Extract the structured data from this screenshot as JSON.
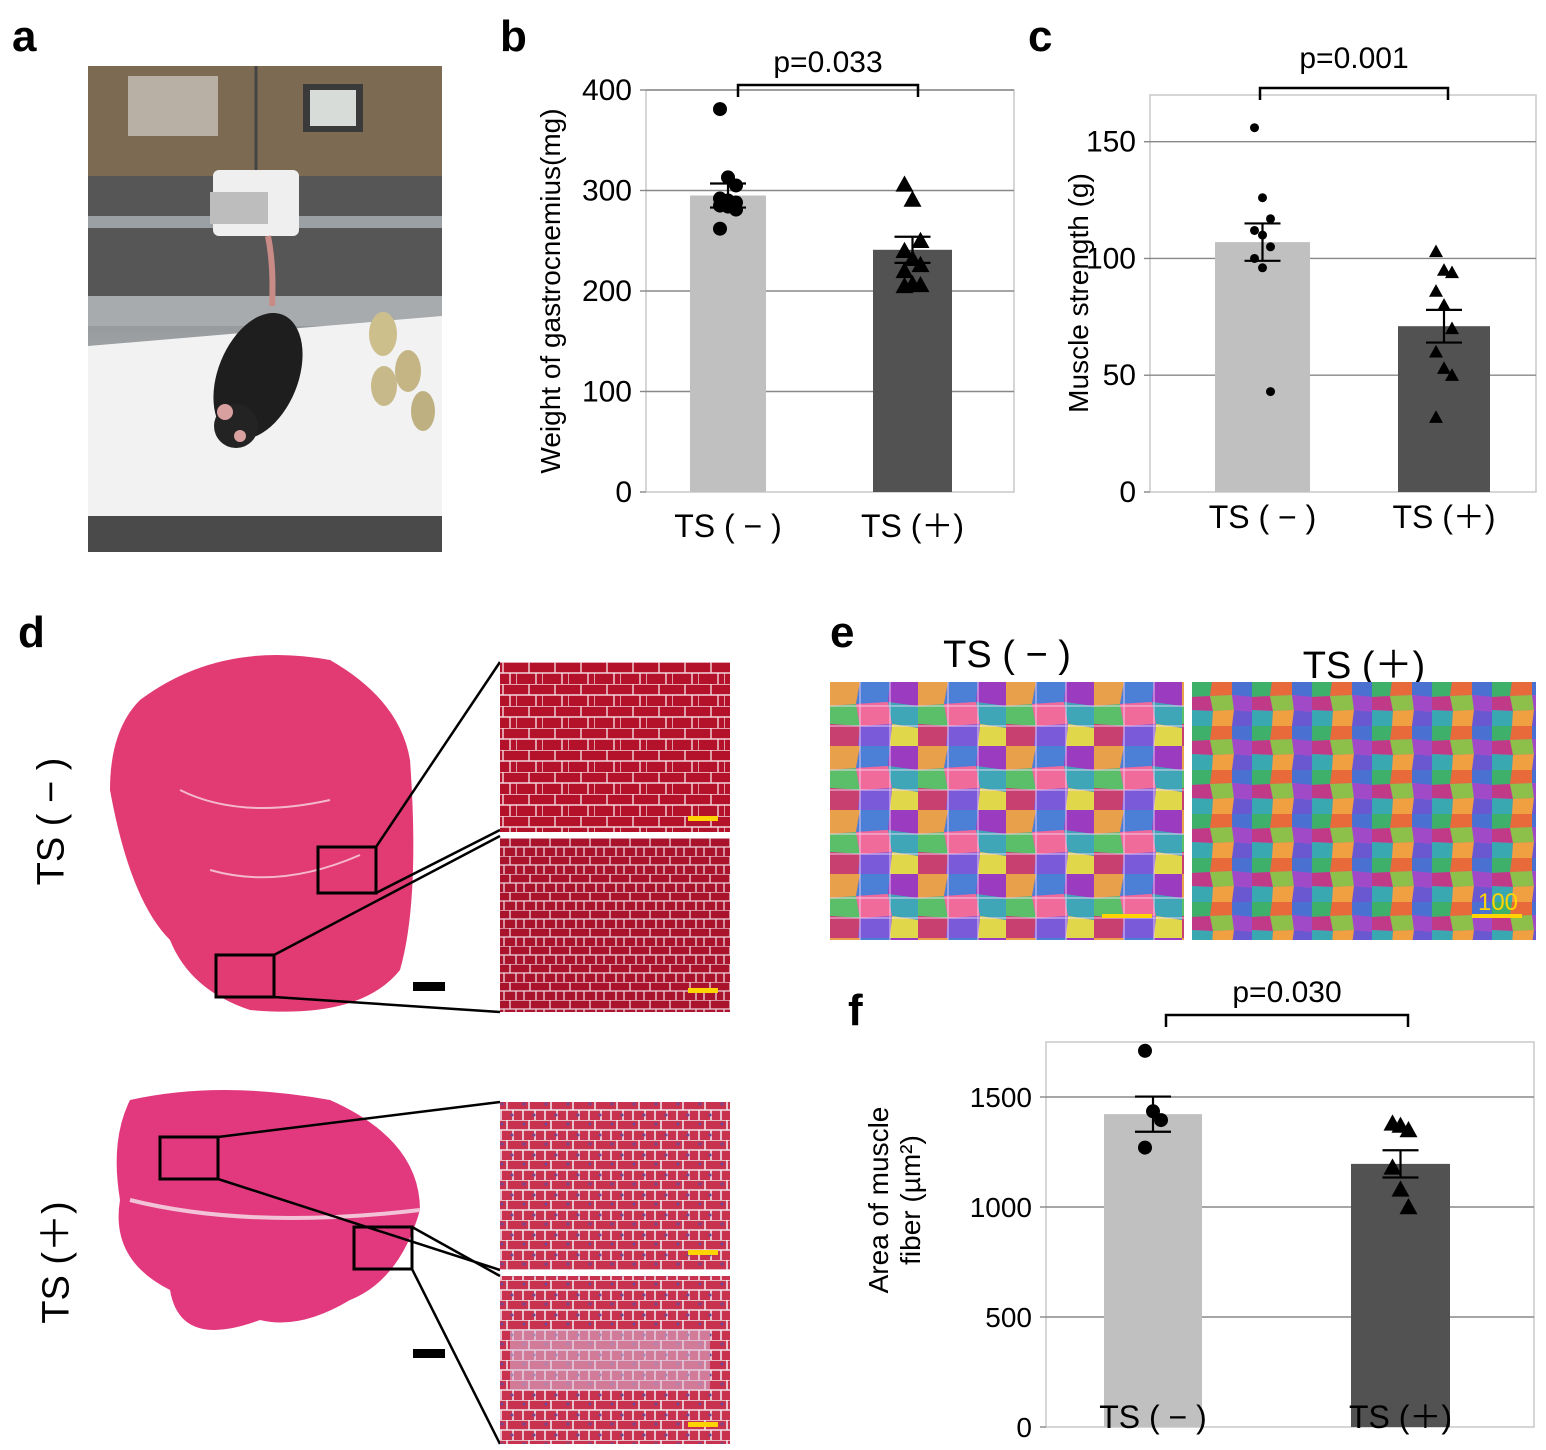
{
  "panels": {
    "a": "a",
    "b": "b",
    "c": "c",
    "d": "d",
    "e": "e",
    "f": "f"
  },
  "panel_d": {
    "row_labels": [
      "TS ( − )",
      "TS (＋)"
    ]
  },
  "panel_e": {
    "headers": [
      "TS ( − )",
      "TS (＋)"
    ],
    "scale_label": "100"
  },
  "colors": {
    "bar_control": "#c0c0c0",
    "bar_ts": "#525252",
    "grid": "#888888",
    "axis_frame": "#c8c8c8",
    "scale_yellow": "#ffd400"
  },
  "chart_data": [
    {
      "id": "b",
      "type": "bar",
      "categories": [
        "TS ( − )",
        "TS (＋)"
      ],
      "values": [
        295,
        241
      ],
      "errors": [
        12,
        13
      ],
      "ylabel": "Weight of gastrocnemius(mg)",
      "xlabel": "",
      "ylim": [
        0,
        400
      ],
      "yticks": [
        0,
        100,
        200,
        300,
        400
      ],
      "grid": true,
      "pvalue": "p=0.033",
      "points": [
        [
          381,
          313,
          305,
          292,
          290,
          288,
          285,
          284,
          281,
          262
        ],
        [
          306,
          291,
          250,
          240,
          232,
          226,
          220,
          207,
          206,
          205
        ]
      ],
      "markers": [
        "circle",
        "triangle"
      ]
    },
    {
      "id": "c",
      "type": "bar",
      "categories": [
        "TS ( − )",
        "TS (＋)"
      ],
      "values": [
        107,
        71
      ],
      "errors": [
        8,
        7
      ],
      "ylabel": "Muscle strength (g)",
      "xlabel": "",
      "ylim": [
        0,
        170
      ],
      "yticks": [
        0,
        50,
        100,
        150
      ],
      "grid": true,
      "pvalue": "p=0.001",
      "points": [
        [
          156,
          126,
          117,
          112,
          110,
          105,
          100,
          96,
          43
        ],
        [
          103,
          95,
          94,
          86,
          80,
          70,
          60,
          53,
          50,
          32
        ]
      ],
      "markers": [
        "circle",
        "triangle"
      ]
    },
    {
      "id": "f",
      "type": "bar",
      "categories": [
        "TS ( − )",
        "TS (＋)"
      ],
      "values": [
        1422,
        1196
      ],
      "errors": [
        80,
        62
      ],
      "ylabel": "Area of muscle fiber (µm²)",
      "ylabel_lines": [
        "Area of muscle",
        "fiber (µm²)"
      ],
      "xlabel": "",
      "ylim": [
        0,
        1750
      ],
      "yticks": [
        0,
        500,
        1000,
        1500
      ],
      "grid": true,
      "pvalue": "p=0.030",
      "points": [
        [
          1710,
          1435,
          1395,
          1270
        ],
        [
          1380,
          1370,
          1350,
          1180,
          1080,
          1000
        ]
      ],
      "markers": [
        "circle",
        "triangle"
      ]
    }
  ]
}
